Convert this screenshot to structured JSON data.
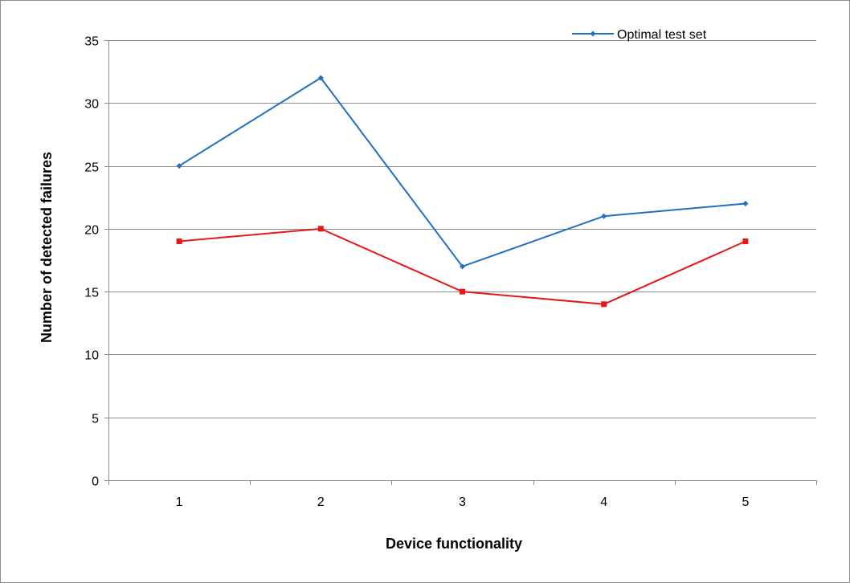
{
  "chart_data": {
    "type": "line",
    "xlabel": "Device functionality",
    "ylabel": "Number of detected failures",
    "categories": [
      "1",
      "2",
      "3",
      "4",
      "5"
    ],
    "ylim": [
      0,
      35
    ],
    "yticks": [
      "0",
      "5",
      "10",
      "15",
      "20",
      "25",
      "30",
      "35"
    ],
    "grid": true,
    "legend_position": "top-right",
    "series": [
      {
        "name": "Optimal test set",
        "values": [
          25,
          32,
          17,
          21,
          22
        ],
        "color": "#1f6fc5",
        "marker": "diamond"
      },
      {
        "values": [
          19,
          20,
          15,
          14,
          19
        ],
        "color": "#e8161b",
        "marker": "square"
      }
    ]
  }
}
